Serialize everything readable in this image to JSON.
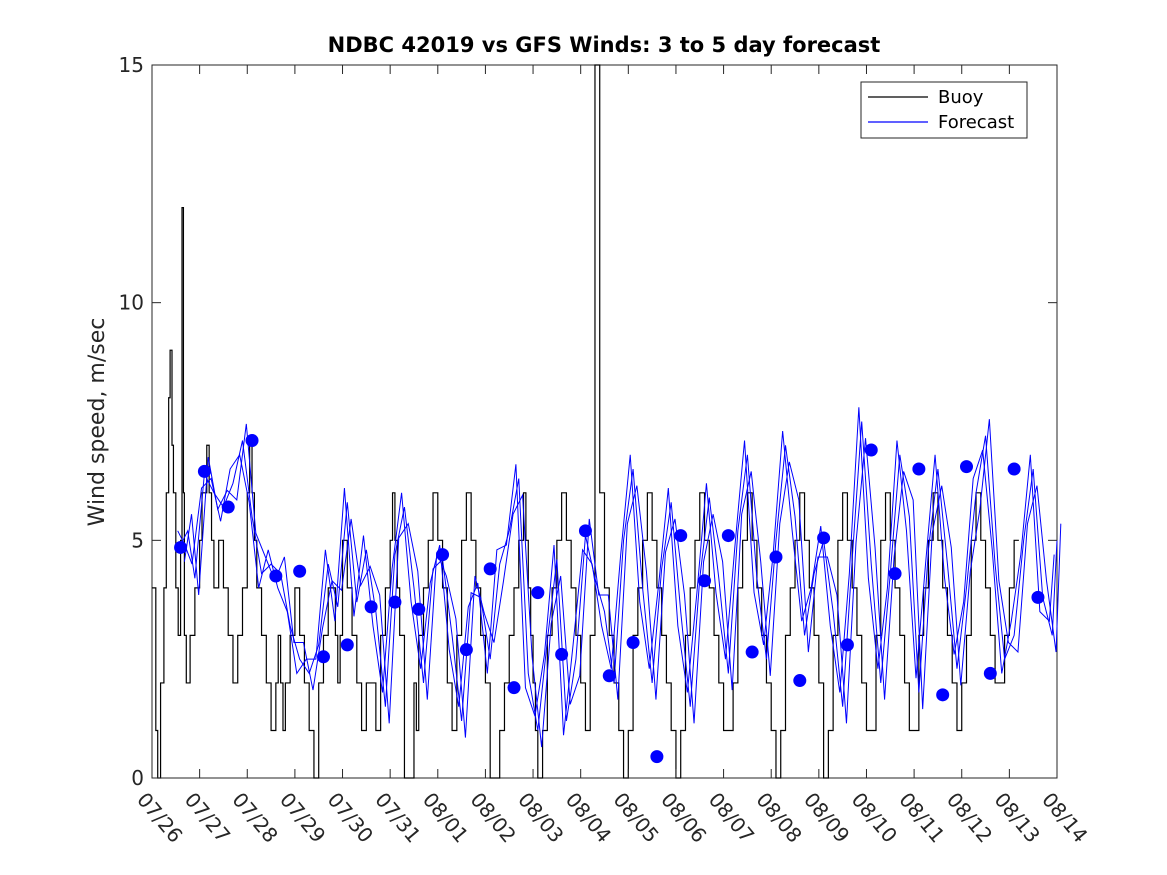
{
  "chart_data": {
    "type": "line",
    "title": "NDBC 42019 vs GFS Winds: 3 to 5 day forecast",
    "xlabel": "",
    "ylabel": "Wind speed, m/sec",
    "xlim": [
      "07/26",
      "08/14"
    ],
    "ylim": [
      0,
      15
    ],
    "x_tick_labels": [
      "07/26",
      "07/27",
      "07/28",
      "07/29",
      "07/30",
      "07/31",
      "08/01",
      "08/02",
      "08/03",
      "08/04",
      "08/05",
      "08/06",
      "08/07",
      "08/08",
      "08/09",
      "08/10",
      "08/11",
      "08/12",
      "08/13",
      "08/14"
    ],
    "y_ticks": [
      0,
      5,
      10,
      15
    ],
    "grid": false,
    "legend": {
      "position": "top-right",
      "entries": [
        {
          "name": "Buoy",
          "color": "#000000"
        },
        {
          "name": "Forecast",
          "color": "#0000ff"
        }
      ]
    },
    "colors": {
      "buoy": "#000000",
      "forecast": "#0000ff"
    },
    "series": [
      {
        "name": "Buoy",
        "x_days_from_0726": [
          0,
          0.08,
          0.12,
          0.18,
          0.25,
          0.3,
          0.35,
          0.38,
          0.42,
          0.45,
          0.5,
          0.55,
          0.6,
          0.63,
          0.66,
          0.68,
          0.72,
          0.8,
          0.9,
          1.0,
          1.05,
          1.1,
          1.15,
          1.2,
          1.25,
          1.3,
          1.35,
          1.4,
          1.5,
          1.6,
          1.7,
          1.8,
          1.9,
          2.0,
          2.05,
          2.1,
          2.15,
          2.2,
          2.3,
          2.4,
          2.5,
          2.55,
          2.6,
          2.65,
          2.7,
          2.75,
          2.8,
          2.9,
          3.0,
          3.1,
          3.2,
          3.3,
          3.4,
          3.5,
          3.6,
          3.7,
          3.8,
          3.85,
          3.9,
          3.95,
          4.0,
          4.1,
          4.2,
          4.3,
          4.4,
          4.5,
          4.6,
          4.7,
          4.8,
          4.9,
          5.0,
          5.05,
          5.1,
          5.15,
          5.2,
          5.3,
          5.4,
          5.5,
          5.55,
          5.6,
          5.7,
          5.8,
          5.9,
          6.0,
          6.1,
          6.2,
          6.3,
          6.4,
          6.5,
          6.6,
          6.7,
          6.8,
          6.9,
          7.0,
          7.1,
          7.2,
          7.3,
          7.4,
          7.5,
          7.6,
          7.7,
          7.8,
          7.85,
          7.9,
          7.95,
          8.0,
          8.05,
          8.1,
          8.2,
          8.3,
          8.4,
          8.5,
          8.6,
          8.7,
          8.8,
          8.9,
          9.0,
          9.1,
          9.15,
          9.2,
          9.3,
          9.4,
          9.5,
          9.6,
          9.7,
          9.8,
          9.9,
          10.0,
          10.1,
          10.2,
          10.3,
          10.4,
          10.5,
          10.6,
          10.7,
          10.8,
          10.9,
          11.0,
          11.1,
          11.2,
          11.3,
          11.4,
          11.5,
          11.6,
          11.7,
          11.8,
          11.9,
          12.0,
          12.1,
          12.2,
          12.3,
          12.4,
          12.5,
          12.6,
          12.7,
          12.8,
          12.9,
          13.0,
          13.1,
          13.2,
          13.3,
          13.4,
          13.5,
          13.6,
          13.7,
          13.8,
          13.9,
          14.0,
          14.1,
          14.2,
          14.3,
          14.4,
          14.5,
          14.6,
          14.7,
          14.8,
          14.9,
          15.0,
          15.1,
          15.2,
          15.3,
          15.4,
          15.5,
          15.6,
          15.7,
          15.8,
          15.9,
          16.0,
          16.1,
          16.2,
          16.3,
          16.4,
          16.5,
          16.6,
          16.7,
          16.8,
          16.9,
          17.0,
          17.1,
          17.2,
          17.3,
          17.4,
          17.5,
          17.6,
          17.7,
          17.8,
          17.9,
          18.0,
          18.1,
          18.2,
          18.3,
          18.4,
          18.5,
          18.6,
          18.7,
          18.8,
          18.9,
          19.0
        ],
        "y": [
          4,
          1,
          0,
          2,
          4,
          6,
          8,
          9,
          7,
          6,
          4,
          3,
          5,
          12,
          6,
          3,
          2,
          3,
          4,
          5,
          6,
          6,
          7,
          6,
          5,
          4,
          4,
          5,
          4,
          3,
          2,
          3,
          4,
          6,
          7,
          6,
          5,
          4,
          3,
          2,
          1,
          1,
          2,
          3,
          2,
          1,
          2,
          3,
          4,
          3,
          2,
          1,
          0,
          2,
          3,
          4,
          4,
          3,
          2,
          3,
          5,
          4,
          3,
          2,
          1,
          2,
          2,
          1,
          3,
          4,
          5,
          6,
          5,
          4,
          3,
          0,
          0,
          2,
          1,
          3,
          4,
          5,
          6,
          5,
          4,
          2,
          1,
          3,
          5,
          6,
          5,
          4,
          3,
          2,
          0,
          0,
          1,
          2,
          3,
          4,
          5,
          6,
          5,
          4,
          3,
          2,
          1,
          0,
          1,
          3,
          4,
          5,
          6,
          5,
          4,
          3,
          2,
          1,
          1,
          3,
          15,
          6,
          4,
          3,
          2,
          1,
          0,
          1,
          3,
          4,
          5,
          6,
          5,
          4,
          3,
          2,
          1,
          0,
          1,
          3,
          4,
          5,
          6,
          5,
          4,
          3,
          2,
          1,
          1,
          2,
          4,
          5,
          6,
          5,
          4,
          3,
          2,
          1,
          0,
          1,
          3,
          4,
          5,
          6,
          5,
          4,
          3,
          2,
          0,
          1,
          3,
          5,
          6,
          5,
          4,
          3,
          2,
          1,
          1,
          3,
          5,
          6,
          5,
          4,
          3,
          2,
          1,
          1,
          3,
          4,
          5,
          6,
          5,
          4,
          3,
          2,
          1,
          2,
          3,
          5,
          6,
          5,
          4,
          3,
          2,
          2,
          3,
          4,
          5
        ]
      },
      {
        "name": "Forecast",
        "x_days_from_0726": [
          0.6,
          0.75,
          0.9,
          1.1,
          1.3,
          1.5,
          1.7,
          1.9,
          2.1,
          2.3,
          2.5,
          2.7,
          2.9,
          3.1,
          3.3,
          3.5,
          3.7,
          3.9,
          4.1,
          4.3,
          4.5,
          4.7,
          4.9,
          5.1,
          5.3,
          5.5,
          5.7,
          5.9,
          6.1,
          6.3,
          6.5,
          6.7,
          6.9,
          7.1,
          7.3,
          7.5,
          7.7,
          7.9,
          8.1,
          8.3,
          8.5,
          8.7,
          8.9,
          9.1,
          9.3,
          9.5,
          9.7,
          9.9,
          10.1,
          10.3,
          10.5,
          10.7,
          10.9,
          11.1,
          11.3,
          11.5,
          11.7,
          11.9,
          12.1,
          12.3,
          12.5,
          12.7,
          12.9,
          13.1,
          13.3,
          13.5,
          13.7,
          13.9,
          14.1,
          14.3,
          14.5,
          14.7,
          14.9,
          15.1,
          15.3,
          15.5,
          15.7,
          15.9,
          16.1,
          16.3,
          16.5,
          16.7,
          16.9,
          17.1,
          17.3,
          17.5,
          17.7,
          17.9,
          18.1,
          18.3,
          18.5,
          18.7,
          18.9,
          19.0
        ],
        "y": [
          4.9,
          5.2,
          4.2,
          6.4,
          6.0,
          5.7,
          6.2,
          7.1,
          5.5,
          4.3,
          4.5,
          4.3,
          3.2,
          2.5,
          2.2,
          2.8,
          4.5,
          3.6,
          5.8,
          3.7,
          4.8,
          3.5,
          1.5,
          4.7,
          5.7,
          4.0,
          2.0,
          4.4,
          4.6,
          3.0,
          1.2,
          3.9,
          3.8,
          2.5,
          4.5,
          5.2,
          6.3,
          2.2,
          1.0,
          2.9,
          4.6,
          1.2,
          2.5,
          5.1,
          4.2,
          3.5,
          2.0,
          5.0,
          6.5,
          4.0,
          2.0,
          4.4,
          5.8,
          3.5,
          1.5,
          4.2,
          5.9,
          4.2,
          2.2,
          5.2,
          6.8,
          4.2,
          2.5,
          5.0,
          7.0,
          5.5,
          3.0,
          4.3,
          5.0,
          3.5,
          1.5,
          4.6,
          7.5,
          4.5,
          2.0,
          4.3,
          6.8,
          5.5,
          1.8,
          4.8,
          6.5,
          4.5,
          2.3,
          4.0,
          6.0,
          7.2,
          4.5,
          2.5,
          3.0,
          5.0,
          6.5,
          3.8,
          3.0,
          5.0
        ]
      }
    ],
    "forecast_markers": {
      "x_days_from_0726": [
        0.6,
        1.1,
        1.6,
        2.1,
        2.6,
        3.1,
        3.6,
        4.1,
        4.6,
        5.1,
        5.6,
        6.1,
        6.6,
        7.1,
        7.6,
        8.1,
        8.6,
        9.1,
        9.6,
        10.1,
        10.6,
        11.1,
        11.6,
        12.1,
        12.6,
        13.1,
        13.6,
        14.1,
        14.6,
        15.1,
        15.6,
        16.1,
        16.6,
        17.1,
        17.6,
        18.1,
        18.6
      ],
      "y": [
        4.85,
        6.45,
        5.7,
        7.1,
        4.25,
        4.35,
        2.55,
        2.8,
        3.6,
        3.7,
        3.55,
        4.7,
        2.7,
        4.4,
        1.9,
        3.9,
        2.6,
        5.2,
        2.15,
        2.85,
        0.45,
        5.1,
        4.15,
        5.1,
        2.65,
        4.65,
        2.05,
        5.05,
        2.8,
        6.9,
        4.3,
        6.5,
        1.75,
        6.55,
        2.2,
        6.5,
        3.8
      ]
    }
  }
}
